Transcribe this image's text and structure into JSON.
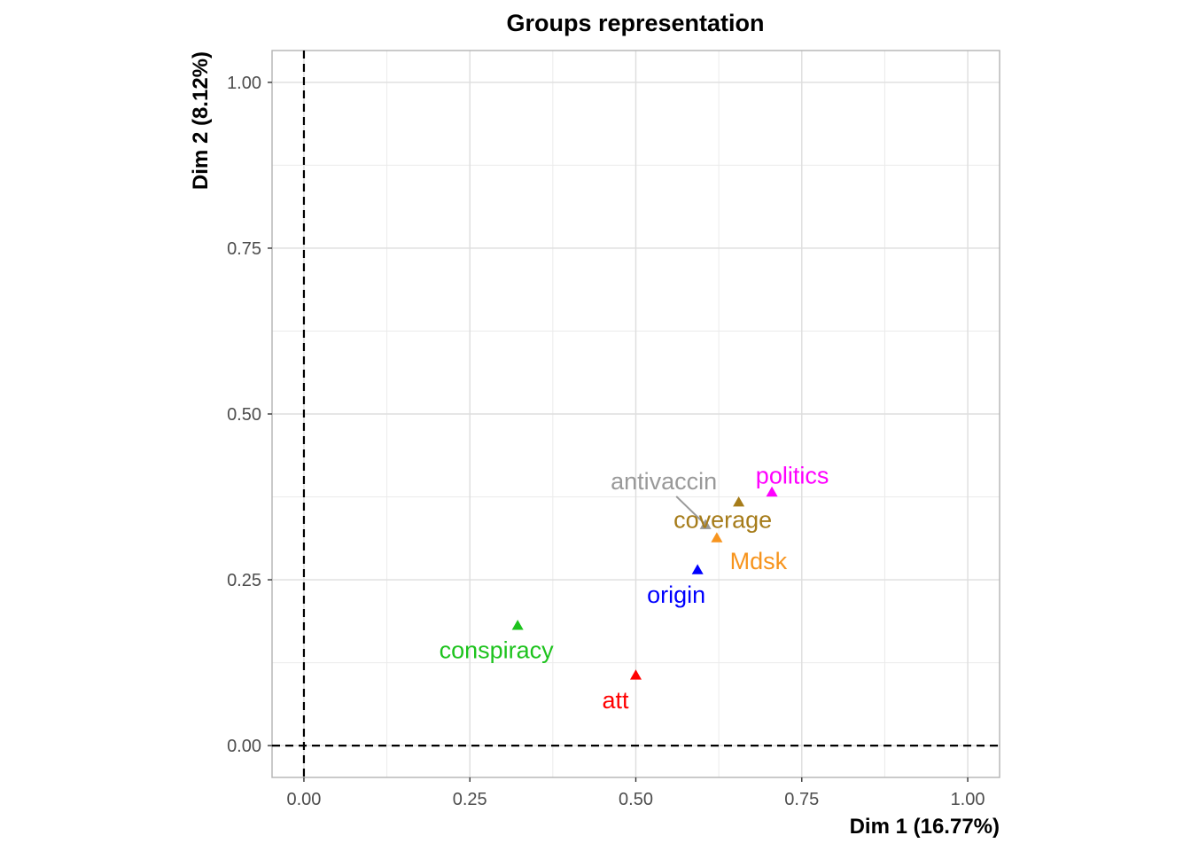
{
  "chart_data": {
    "type": "scatter",
    "title": "Groups representation",
    "xlabel": "Dim 1 (16.77%)",
    "ylabel": "Dim 2 (8.12%)",
    "xlim": [
      -0.048,
      1.048
    ],
    "ylim": [
      -0.048,
      1.048
    ],
    "xticks": [
      0.0,
      0.25,
      0.5,
      0.75,
      1.0
    ],
    "xtick_labels": [
      "0.00",
      "0.25",
      "0.50",
      "0.75",
      "1.00"
    ],
    "yticks": [
      0.0,
      0.25,
      0.5,
      0.75,
      1.0
    ],
    "ytick_labels": [
      "0.00",
      "0.25",
      "0.50",
      "0.75",
      "1.00"
    ],
    "grid": true,
    "reference_lines": {
      "x": 0,
      "y": 0,
      "style": "dashed"
    },
    "marker": "triangle",
    "points": [
      {
        "label": "politics",
        "x": 0.705,
        "y": 0.382,
        "color": "#FF00FF"
      },
      {
        "label": "antivaccin",
        "x": 0.605,
        "y": 0.333,
        "color": "#999999"
      },
      {
        "label": "coverage",
        "x": 0.655,
        "y": 0.367,
        "color": "#A67C1A"
      },
      {
        "label": "Mdsk",
        "x": 0.622,
        "y": 0.313,
        "color": "#F7941D"
      },
      {
        "label": "origin",
        "x": 0.593,
        "y": 0.265,
        "color": "#0000FF"
      },
      {
        "label": "conspiracy",
        "x": 0.322,
        "y": 0.181,
        "color": "#1DC31D"
      },
      {
        "label": "att",
        "x": 0.5,
        "y": 0.106,
        "color": "#FF0000"
      }
    ]
  }
}
